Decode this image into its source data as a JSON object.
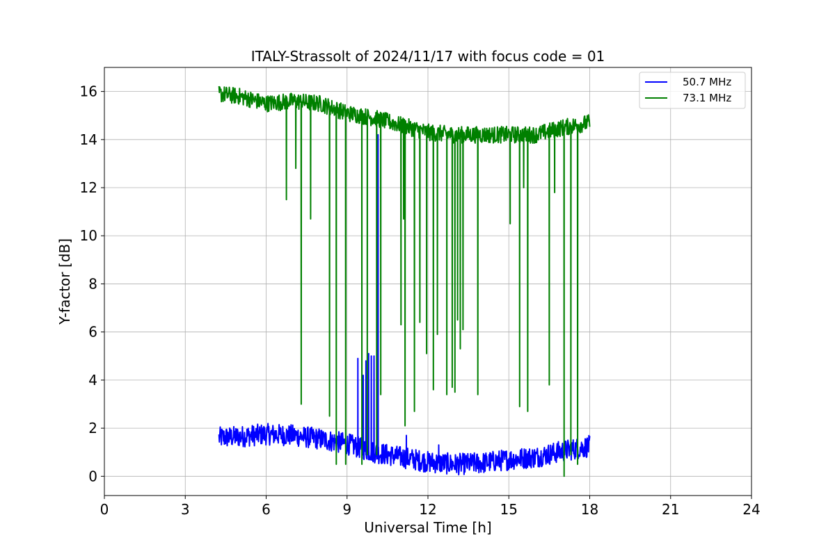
{
  "chart_data": {
    "type": "line",
    "title": "ITALY-Strassolt of 2024/11/17 with focus code = 01",
    "xlabel": "Universal Time [h]",
    "ylabel": "Y-factor [dB]",
    "xlim": [
      0,
      24
    ],
    "ylim": [
      -0.8,
      17
    ],
    "xticks": [
      0,
      3,
      6,
      9,
      12,
      15,
      18,
      21,
      24
    ],
    "yticks": [
      0,
      2,
      4,
      6,
      8,
      10,
      12,
      14,
      16
    ],
    "grid": true,
    "legend_position": "top-right",
    "series": [
      {
        "name": "50.7 MHz",
        "color": "#0000ff",
        "noise_amplitude": 0.45,
        "baseline": [
          [
            4.25,
            1.6
          ],
          [
            5.0,
            1.65
          ],
          [
            6.0,
            1.75
          ],
          [
            7.0,
            1.7
          ],
          [
            8.0,
            1.55
          ],
          [
            9.0,
            1.35
          ],
          [
            10.0,
            1.0
          ],
          [
            11.0,
            0.8
          ],
          [
            12.0,
            0.6
          ],
          [
            13.0,
            0.5
          ],
          [
            14.0,
            0.55
          ],
          [
            15.0,
            0.7
          ],
          [
            16.0,
            0.8
          ],
          [
            17.0,
            1.05
          ],
          [
            18.0,
            1.25
          ]
        ],
        "spikes": [
          [
            9.4,
            4.9
          ],
          [
            9.6,
            4.2
          ],
          [
            9.7,
            4.8
          ],
          [
            9.8,
            5.1
          ],
          [
            9.9,
            5.0
          ],
          [
            10.0,
            5.0
          ],
          [
            10.15,
            14.2
          ],
          [
            11.2,
            1.7
          ],
          [
            12.4,
            1.3
          ]
        ]
      },
      {
        "name": "73.1 MHz",
        "color": "#008000",
        "noise_amplitude": 0.35,
        "baseline": [
          [
            4.25,
            15.9
          ],
          [
            5.0,
            15.8
          ],
          [
            6.0,
            15.5
          ],
          [
            7.0,
            15.6
          ],
          [
            8.0,
            15.5
          ],
          [
            9.0,
            15.1
          ],
          [
            10.0,
            14.9
          ],
          [
            11.0,
            14.6
          ],
          [
            12.0,
            14.3
          ],
          [
            13.0,
            14.2
          ],
          [
            14.0,
            14.2
          ],
          [
            15.0,
            14.2
          ],
          [
            16.0,
            14.2
          ],
          [
            17.0,
            14.5
          ],
          [
            18.0,
            14.7
          ]
        ],
        "dips": [
          [
            6.75,
            11.5
          ],
          [
            7.1,
            12.8
          ],
          [
            7.3,
            3.0
          ],
          [
            7.65,
            10.7
          ],
          [
            8.35,
            2.5
          ],
          [
            8.6,
            0.5
          ],
          [
            8.95,
            0.5
          ],
          [
            9.55,
            0.5
          ],
          [
            9.75,
            0.9
          ],
          [
            10.1,
            0.9
          ],
          [
            10.25,
            3.4
          ],
          [
            11.0,
            6.3
          ],
          [
            11.1,
            10.7
          ],
          [
            11.15,
            2.1
          ],
          [
            11.5,
            2.7
          ],
          [
            11.7,
            6.4
          ],
          [
            11.95,
            5.1
          ],
          [
            12.2,
            3.6
          ],
          [
            12.35,
            5.9
          ],
          [
            12.7,
            3.4
          ],
          [
            12.9,
            3.7
          ],
          [
            13.0,
            3.5
          ],
          [
            13.1,
            6.5
          ],
          [
            13.2,
            5.3
          ],
          [
            13.3,
            6.1
          ],
          [
            13.85,
            3.4
          ],
          [
            15.05,
            10.5
          ],
          [
            15.4,
            2.9
          ],
          [
            15.55,
            12.0
          ],
          [
            15.7,
            2.7
          ],
          [
            16.5,
            3.8
          ],
          [
            16.7,
            11.8
          ],
          [
            17.05,
            0.0
          ],
          [
            17.3,
            0.9
          ],
          [
            17.55,
            0.5
          ]
        ]
      }
    ]
  }
}
